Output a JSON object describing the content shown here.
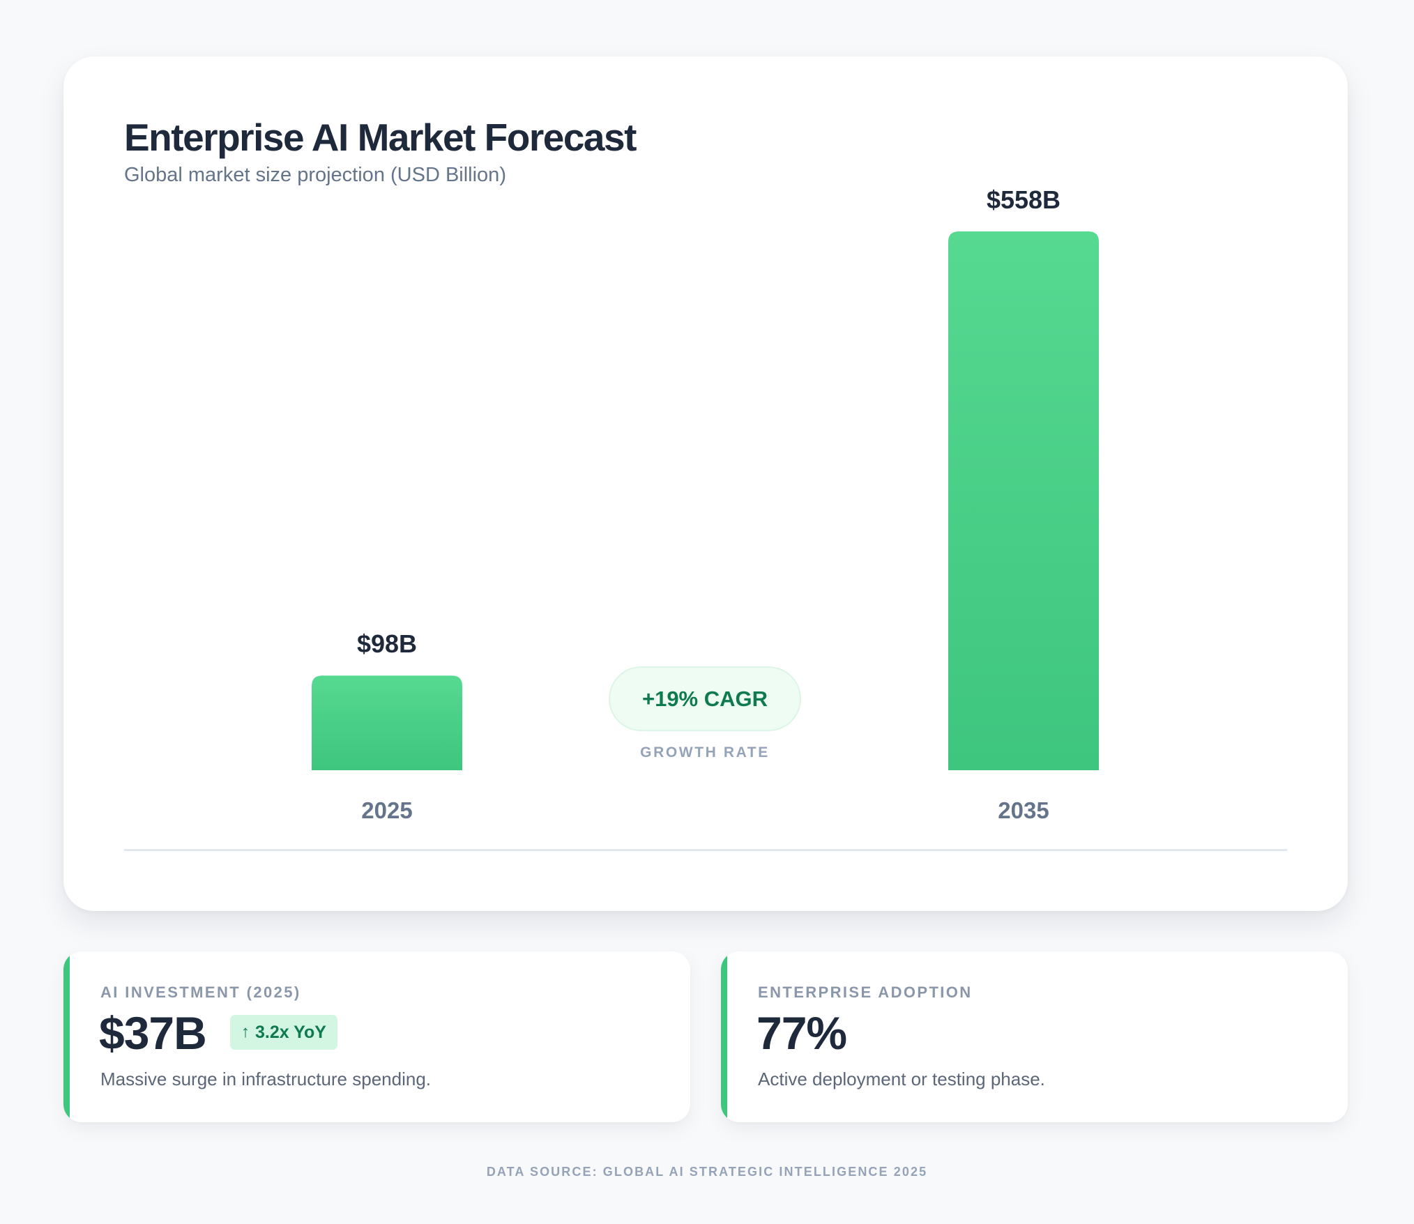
{
  "chart_data": {
    "type": "bar",
    "title": "Enterprise AI Market Forecast",
    "subtitle": "Global market size projection (USD Billion)",
    "categories": [
      "2025",
      "2035"
    ],
    "values": [
      98,
      558
    ],
    "value_labels": [
      "$98B",
      "$558B"
    ],
    "ylabel": "",
    "xlabel": "",
    "ylim": [
      0,
      558
    ],
    "grid": false,
    "bar_color": "#3ec57e",
    "bar_gradient_top": "#56d991",
    "annotation": {
      "text": "+19% CAGR",
      "label": "GROWTH RATE"
    }
  },
  "stats": [
    {
      "label": "AI INVESTMENT (2025)",
      "value": "$37B",
      "badge": "3.2x YoY",
      "badge_icon": "up-arrow-icon",
      "description": "Massive surge in infrastructure spending."
    },
    {
      "label": "ENTERPRISE ADOPTION",
      "value": "77%",
      "description": "Active deployment or testing phase."
    }
  ],
  "footer": {
    "source": "DATA SOURCE: GLOBAL AI STRATEGIC INTELLIGENCE 2025"
  },
  "colors": {
    "accent": "#3ec57e",
    "badge_text": "#0f7a4e",
    "badge_bg": "#d3f6e2",
    "title": "#1e293b",
    "muted": "#64748b"
  }
}
